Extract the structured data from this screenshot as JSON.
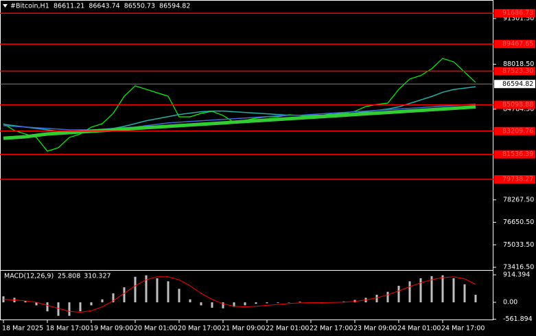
{
  "chart_data": [
    {
      "type": "line",
      "title": "#Bitcoin,H1",
      "ohlc": [
        86611.21,
        86643.74,
        86550.73,
        86594.82
      ],
      "categories": [
        "18 Mar 2025",
        null,
        null,
        null,
        "18 Mar 17:00",
        null,
        null,
        null,
        "19 Mar 09:00",
        null,
        null,
        null,
        "20 Mar 01:00",
        null,
        null,
        null,
        "20 Mar 17:00",
        null,
        null,
        null,
        "21 Mar 09:00",
        null,
        null,
        null,
        "22 Mar 01:00",
        null,
        null,
        null,
        "22 Mar 17:00",
        null,
        null,
        null,
        "23 Mar 09:00",
        null,
        null,
        null,
        "24 Mar 01:00",
        null,
        null,
        null,
        "24 Mar 17:00",
        null,
        null,
        null
      ],
      "series": [
        {
          "color": "#00ff00",
          "values": [
            83742,
            83248,
            83000,
            82754,
            81766,
            82013,
            82754,
            83000,
            83495,
            83742,
            84483,
            85718,
            86460,
            86213,
            85965,
            85718,
            84236,
            84236,
            84483,
            84631,
            84335,
            83841,
            83989,
            84137,
            84236,
            84236,
            84384,
            84335,
            84236,
            84335,
            84483,
            84483,
            84631,
            84977,
            85125,
            85224,
            86213,
            86954,
            87201,
            87695,
            88436,
            88189,
            87448,
            86707
          ]
        },
        {
          "color": "#20b2aa",
          "values": [
            83700,
            83600,
            83500,
            83400,
            83300,
            83200,
            83150,
            83150,
            83200,
            83300,
            83400,
            83550,
            83750,
            83950,
            84100,
            84250,
            84400,
            84500,
            84600,
            84650,
            84650,
            84600,
            84550,
            84500,
            84450,
            84400,
            84350,
            84350,
            84350,
            84350,
            84400,
            84450,
            84500,
            84600,
            84700,
            84800,
            84950,
            85200,
            85450,
            85700,
            86000,
            86200,
            86300,
            86400
          ]
        },
        {
          "color": "#4169e1",
          "values": [
            83600,
            83550,
            83500,
            83450,
            83400,
            83350,
            83300,
            83300,
            83300,
            83350,
            83400,
            83450,
            83500,
            83600,
            83700,
            83800,
            83850,
            83900,
            83950,
            84000,
            84050,
            84100,
            84150,
            84200,
            84250,
            84300,
            84350,
            84350,
            84400,
            84450,
            84500,
            84550,
            84600,
            84650,
            84700,
            84750,
            84800,
            84850,
            84900,
            84950,
            85000,
            85050,
            85100,
            85150
          ]
        },
        {
          "color": "#32cd32",
          "values": [
            82700,
            82750,
            82800,
            82900,
            83000,
            83050,
            83100,
            83150,
            83200,
            83250,
            83300,
            83350,
            83400,
            83450,
            83500,
            83550,
            83600,
            83650,
            83700,
            83750,
            83800,
            83850,
            83900,
            83950,
            84000,
            84050,
            84100,
            84150,
            84200,
            84250,
            84300,
            84350,
            84400,
            84450,
            84500,
            84550,
            84600,
            84650,
            84700,
            84750,
            84800,
            84850,
            84900,
            84950
          ]
        }
      ],
      "levels": [
        91686.73,
        89467.65,
        {
          "value": 87523.3,
          "label": "87523.30"
        },
        85098.88,
        83209.76,
        81536.39,
        79738.27
      ],
      "level_color": "#ff0000",
      "current_price": 86594.82,
      "ylim": [
        73268,
        92635
      ],
      "yticks": [
        {
          "value": 91301.5,
          "label": "91301.50"
        },
        {
          "value": 88018.5,
          "label": "88018.50"
        },
        {
          "value": 84784.5,
          "label": "84784.50"
        },
        {
          "value": 78267.5,
          "label": "78267.50"
        },
        {
          "value": 76650.5,
          "label": "76650.50"
        },
        {
          "value": 75033.5,
          "label": "75033.50"
        },
        {
          "value": 73416.5,
          "label": "73416.50"
        }
      ]
    },
    {
      "type": "macd",
      "title": "MACD(12,26,9)",
      "indicator_values": [
        25.808,
        310.327
      ],
      "series": [
        {
          "color": "#c0c0c0",
          "values": [
            200,
            150,
            50,
            -100,
            -300,
            -450,
            -450,
            -300,
            -100,
            100,
            300,
            500,
            850,
            900,
            800,
            700,
            450,
            100,
            -100,
            -180,
            -200,
            -150,
            -100,
            -50,
            -30,
            -20,
            0,
            20,
            -20,
            -30,
            0,
            30,
            80,
            150,
            250,
            350,
            550,
            700,
            800,
            870,
            900,
            800,
            600,
            250
          ]
        },
        {
          "color": "#ff0000",
          "values": [
            100,
            80,
            50,
            0,
            -100,
            -200,
            -300,
            -330,
            -280,
            -150,
            50,
            300,
            550,
            750,
            850,
            850,
            750,
            550,
            300,
            100,
            -50,
            -130,
            -150,
            -130,
            -100,
            -70,
            -40,
            -20,
            -10,
            -10,
            -5,
            5,
            30,
            80,
            150,
            250,
            380,
            520,
            650,
            750,
            820,
            850,
            780,
            600
          ]
        }
      ],
      "ylim": [
        -594,
        1074
      ],
      "yticks": [
        914.394,
        {
          "value": 0,
          "label": "0.00"
        },
        -561.894
      ]
    }
  ]
}
